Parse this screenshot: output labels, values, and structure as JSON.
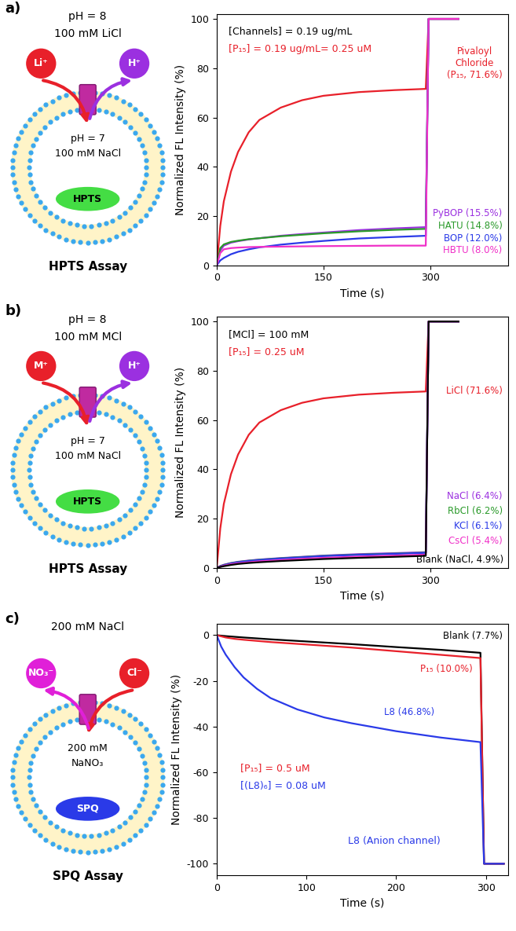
{
  "chart_data": [
    {
      "type": "line",
      "x_label": "Time (s)",
      "y_label": "Normalized FL Intensity (%)",
      "x": [
        0,
        5,
        10,
        20,
        30,
        45,
        60,
        90,
        120,
        150,
        200,
        250,
        294,
        298,
        302,
        340
      ],
      "xlim": [
        0,
        410
      ],
      "xticks": [
        0,
        150,
        300
      ],
      "ylim": [
        0,
        102
      ],
      "yticks": [
        0,
        20,
        40,
        60,
        80,
        100
      ],
      "grid": false,
      "annotations": [
        {
          "text": "[Channels] = 0.19 ug/mL",
          "color": "#000000"
        },
        {
          "text": "[P₁₅] = 0.19 ug/mL= 0.25 uM",
          "color": "#e8202a"
        }
      ],
      "series": [
        {
          "name": "Pivaloyl\nChloride\n(P₁₅, 71.6%)",
          "color": "#e8202a",
          "values": [
            0,
            16,
            26,
            38,
            46,
            54,
            59,
            64,
            67,
            68.8,
            70.3,
            71.1,
            71.6,
            100,
            100,
            100
          ]
        },
        {
          "name": "PyBOP (15.5%)",
          "color": "#9b30e0",
          "values": [
            0,
            6,
            8,
            9.2,
            9.8,
            10.5,
            11,
            12,
            12.7,
            13.3,
            14.3,
            15,
            15.5,
            100,
            100,
            100
          ]
        },
        {
          "name": "HATU (14.8%)",
          "color": "#2a9a2a",
          "values": [
            0,
            7,
            8.5,
            9.5,
            10,
            10.6,
            11,
            11.8,
            12.4,
            13,
            13.8,
            14.4,
            14.8,
            100,
            100,
            100
          ]
        },
        {
          "name": "BOP (12.0%)",
          "color": "#2a3ae8",
          "values": [
            0,
            2,
            3,
            4.5,
            5.5,
            6.5,
            7.3,
            8.4,
            9.2,
            9.9,
            10.9,
            11.5,
            12.0,
            100,
            100,
            100
          ]
        },
        {
          "name": "HBTU (8.0%)",
          "color": "#f030c8",
          "values": [
            0,
            5,
            6.5,
            7,
            7.2,
            7.4,
            7.5,
            7.6,
            7.7,
            7.8,
            7.9,
            8.0,
            8.0,
            100,
            100,
            100
          ]
        }
      ]
    },
    {
      "type": "line",
      "x_label": "Time (s)",
      "y_label": "Normalized FL Intensity (%)",
      "x": [
        0,
        5,
        10,
        20,
        30,
        45,
        60,
        90,
        120,
        150,
        200,
        250,
        294,
        298,
        302,
        340
      ],
      "xlim": [
        0,
        410
      ],
      "xticks": [
        0,
        150,
        300
      ],
      "ylim": [
        0,
        102
      ],
      "yticks": [
        0,
        20,
        40,
        60,
        80,
        100
      ],
      "grid": false,
      "annotations": [
        {
          "text": "[MCl] = 100 mM",
          "color": "#000000"
        },
        {
          "text": "[P₁₅] = 0.25 uM",
          "color": "#e8202a"
        }
      ],
      "series": [
        {
          "name": "LiCl (71.6%)",
          "color": "#e8202a",
          "values": [
            0,
            16,
            26,
            38,
            46,
            54,
            59,
            64,
            67,
            68.8,
            70.3,
            71.1,
            71.6,
            100,
            100,
            100
          ]
        },
        {
          "name": "NaCl (6.4%)",
          "color": "#9b30e0",
          "values": [
            0,
            0.8,
            1.3,
            2,
            2.5,
            3,
            3.4,
            4,
            4.5,
            5,
            5.6,
            6,
            6.4,
            100,
            100,
            100
          ]
        },
        {
          "name": "RbCl (6.2%)",
          "color": "#2a9a2a",
          "values": [
            0,
            0.7,
            1.2,
            1.9,
            2.4,
            2.9,
            3.3,
            3.9,
            4.4,
            4.9,
            5.4,
            5.8,
            6.2,
            100,
            100,
            100
          ]
        },
        {
          "name": "KCl (6.1%)",
          "color": "#2a3ae8",
          "values": [
            0,
            0.6,
            1.1,
            1.8,
            2.3,
            2.8,
            3.2,
            3.8,
            4.3,
            4.8,
            5.3,
            5.7,
            6.1,
            100,
            100,
            100
          ]
        },
        {
          "name": "CsCl (5.4%)",
          "color": "#f030c8",
          "values": [
            0,
            0.5,
            0.9,
            1.5,
            1.9,
            2.3,
            2.7,
            3.2,
            3.7,
            4.1,
            4.6,
            5.0,
            5.4,
            100,
            100,
            100
          ]
        },
        {
          "name": "Blank (NaCl, 4.9%)",
          "color": "#000000",
          "values": [
            0,
            0.4,
            0.7,
            1.2,
            1.6,
            2,
            2.3,
            2.8,
            3.2,
            3.6,
            4.1,
            4.5,
            4.9,
            100,
            100,
            100
          ]
        }
      ]
    },
    {
      "type": "line",
      "x_label": "Time (s)",
      "y_label": "Normalized FL Intensity (%)",
      "x": [
        0,
        5,
        10,
        20,
        30,
        45,
        60,
        90,
        120,
        150,
        200,
        250,
        294,
        298,
        302,
        320
      ],
      "xlim": [
        0,
        325
      ],
      "xticks": [
        0,
        100,
        200,
        300
      ],
      "ylim": [
        -105,
        5
      ],
      "yticks": [
        -100,
        -80,
        -60,
        -40,
        -20,
        0
      ],
      "grid": false,
      "annotations": [
        {
          "text": "[P₁₅] = 0.5 uM",
          "color": "#e8202a"
        },
        {
          "text": "[(L8)₆] = 0.08 uM",
          "color": "#2a3ae8"
        },
        {
          "text": "L8 (Anion channel)",
          "color": "#2a3ae8"
        }
      ],
      "series": [
        {
          "name": "Blank (7.7%)",
          "color": "#000000",
          "values": [
            0,
            -0.2,
            -0.4,
            -0.7,
            -1,
            -1.4,
            -1.8,
            -2.5,
            -3.2,
            -3.9,
            -5.2,
            -6.4,
            -7.7,
            -100,
            -100,
            -100
          ]
        },
        {
          "name": "P₁₅ (10.0%)",
          "color": "#e8202a",
          "values": [
            0,
            -0.5,
            -1,
            -1.6,
            -2,
            -2.5,
            -3,
            -3.8,
            -4.6,
            -5.4,
            -7,
            -8.6,
            -10,
            -100,
            -100,
            -100
          ]
        },
        {
          "name": "L8 (46.8%)",
          "color": "#2a3ae8",
          "values": [
            0,
            -5,
            -8.5,
            -14,
            -18.5,
            -23.5,
            -27.5,
            -32.5,
            -36,
            -38.5,
            -42,
            -44.8,
            -46.8,
            -100,
            -100,
            -100
          ]
        }
      ]
    }
  ],
  "diagrams": [
    {
      "panel": "a)",
      "outside": [
        "pH = 8",
        "100 mM LiCl"
      ],
      "inside": [
        "pH = 7",
        "100 mM NaCl"
      ],
      "influx_side": "left",
      "influx": {
        "text": "Li⁺",
        "color": "#e8202a"
      },
      "efflux": {
        "text": "H⁺",
        "color": "#9b30e0"
      },
      "dye": {
        "text": "HPTS",
        "color": "#44dd44"
      },
      "caption": "HPTS Assay"
    },
    {
      "panel": "b)",
      "outside": [
        "pH = 8",
        "100 mM MCl"
      ],
      "inside": [
        "pH = 7",
        "100 mM NaCl"
      ],
      "influx_side": "left",
      "influx": {
        "text": "M⁺",
        "color": "#e8202a"
      },
      "efflux": {
        "text": "H⁺",
        "color": "#9b30e0"
      },
      "dye": {
        "text": "HPTS",
        "color": "#44dd44"
      },
      "caption": "HPTS Assay"
    },
    {
      "panel": "c)",
      "outside": [
        "200 mM NaCl"
      ],
      "inside": [
        "200 mM",
        "NaNO₃"
      ],
      "influx_side": "right",
      "influx": {
        "text": "Cl⁻",
        "color": "#e8202a"
      },
      "efflux": {
        "text": "NO₃⁻",
        "color": "#e020d8"
      },
      "dye": {
        "text": "SPQ",
        "color": "#2a3ae8"
      },
      "caption": "SPQ Assay"
    }
  ]
}
